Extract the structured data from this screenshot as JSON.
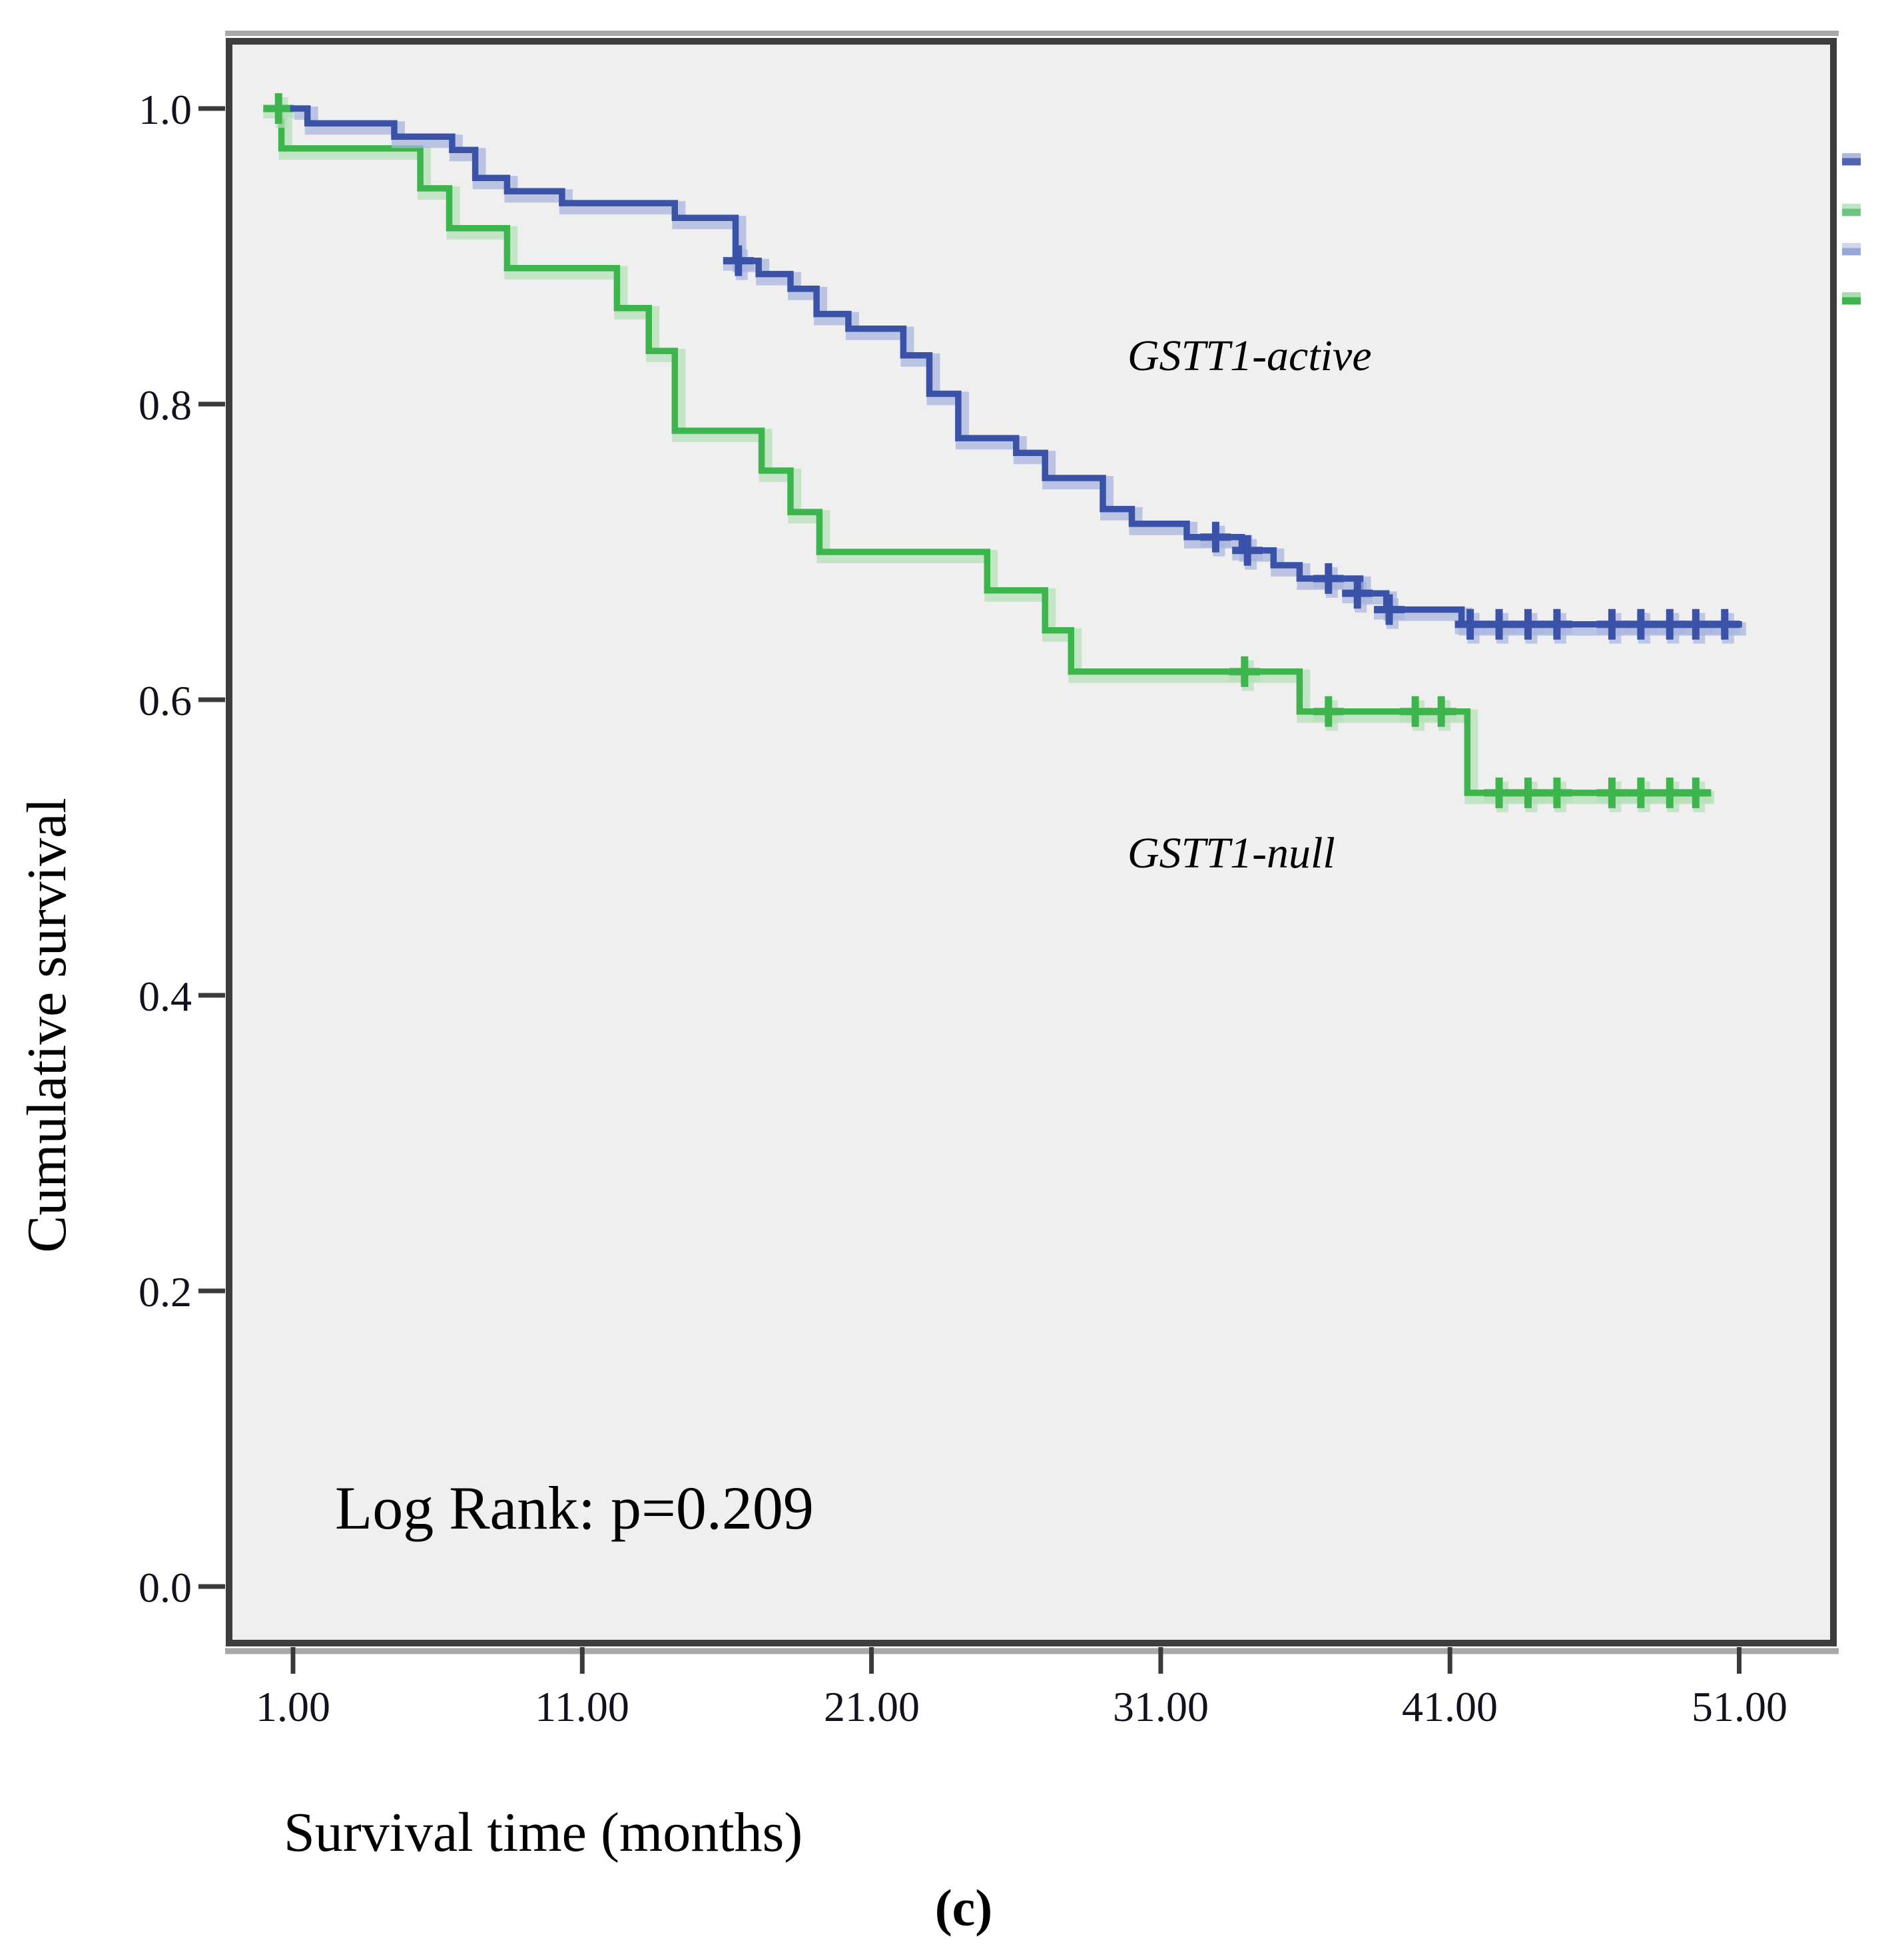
{
  "chart_data": {
    "type": "line",
    "subtype": "kaplan-meier-step",
    "title": "",
    "xlabel": "Survival time (months)",
    "ylabel": "Cumulative survival",
    "xlim": [
      -1.3,
      54.4
    ],
    "ylim": [
      -0.04,
      1.046
    ],
    "grid": false,
    "legend_position": "right-clipped",
    "x_ticks": [
      1,
      11,
      21,
      31,
      41,
      51
    ],
    "x_tick_labels": [
      "1.00",
      "11.00",
      "21.00",
      "31.00",
      "41.00",
      "51.00"
    ],
    "y_ticks": [
      0.0,
      0.2,
      0.4,
      0.6,
      0.8,
      1.0
    ],
    "y_tick_labels": [
      "0.0",
      "0.2",
      "0.4",
      "0.6",
      "0.8",
      "1.0"
    ],
    "annotations": {
      "log_rank": "Log Rank: p=0.209",
      "active_label": "GSTT1-active",
      "null_label": "GSTT1-null"
    },
    "caption": "(c)",
    "colors": {
      "plot_background": "#efefef",
      "frame_border": "#3d3d3d",
      "frame_shadow": "#a8a8a8",
      "active_line": "#3a53a8",
      "active_halo": "#aab6de",
      "null_line": "#3cb54d",
      "null_halo": "#b5e0b8",
      "tick": "#3a3a3a",
      "text": "#101018"
    },
    "series": [
      {
        "name": "GSTT1-active",
        "color": "#3a53a8",
        "end_t": 51.1,
        "points": [
          [
            0.9,
            1.0
          ],
          [
            1.5,
            0.99
          ],
          [
            4.5,
            0.981
          ],
          [
            6.5,
            0.972
          ],
          [
            7.3,
            0.953
          ],
          [
            8.4,
            0.944
          ],
          [
            10.3,
            0.936
          ],
          [
            14.2,
            0.926
          ],
          [
            16.3,
            0.897
          ],
          [
            17.1,
            0.888
          ],
          [
            18.2,
            0.878
          ],
          [
            19.1,
            0.861
          ],
          [
            20.2,
            0.851
          ],
          [
            22.1,
            0.833
          ],
          [
            23.0,
            0.807
          ],
          [
            24.0,
            0.777
          ],
          [
            26.0,
            0.767
          ],
          [
            27.0,
            0.75
          ],
          [
            29.0,
            0.729
          ],
          [
            30.0,
            0.719
          ],
          [
            31.9,
            0.71
          ],
          [
            33.8,
            0.701
          ],
          [
            34.9,
            0.691
          ],
          [
            35.8,
            0.682
          ],
          [
            37.9,
            0.672
          ],
          [
            38.8,
            0.661
          ],
          [
            41.4,
            0.651
          ]
        ],
        "censored": [
          [
            16.4,
            0.897
          ],
          [
            32.9,
            0.71
          ],
          [
            34.0,
            0.701
          ],
          [
            36.8,
            0.682
          ],
          [
            37.8,
            0.672
          ],
          [
            38.9,
            0.661
          ],
          [
            41.7,
            0.651
          ],
          [
            42.7,
            0.651
          ],
          [
            43.7,
            0.651
          ],
          [
            44.7,
            0.651
          ],
          [
            46.6,
            0.651
          ],
          [
            47.6,
            0.651
          ],
          [
            48.6,
            0.651
          ],
          [
            49.5,
            0.651
          ],
          [
            50.5,
            0.651
          ]
        ]
      },
      {
        "name": "GSTT1-null",
        "color": "#3cb54d",
        "end_t": 50.0,
        "points": [
          [
            0.5,
            1.0
          ],
          [
            0.6,
            0.973
          ],
          [
            5.4,
            0.946
          ],
          [
            6.4,
            0.919
          ],
          [
            8.4,
            0.892
          ],
          [
            12.2,
            0.865
          ],
          [
            13.3,
            0.836
          ],
          [
            14.2,
            0.782
          ],
          [
            17.2,
            0.755
          ],
          [
            18.2,
            0.727
          ],
          [
            19.2,
            0.7
          ],
          [
            25.0,
            0.674
          ],
          [
            27.0,
            0.647
          ],
          [
            27.9,
            0.619
          ],
          [
            35.8,
            0.592
          ],
          [
            41.6,
            0.537
          ]
        ],
        "censored": [
          [
            0.5,
            1.0
          ],
          [
            33.9,
            0.619
          ],
          [
            36.8,
            0.592
          ],
          [
            39.8,
            0.592
          ],
          [
            40.7,
            0.592
          ],
          [
            42.7,
            0.537
          ],
          [
            43.7,
            0.537
          ],
          [
            44.7,
            0.537
          ],
          [
            46.6,
            0.537
          ],
          [
            47.6,
            0.537
          ],
          [
            48.6,
            0.537
          ],
          [
            49.5,
            0.537
          ]
        ]
      }
    ],
    "legend_fragments": [
      {
        "color": "#4e64b0",
        "y": 243
      },
      {
        "color": "#6ec580",
        "y": 319
      },
      {
        "color": "#98a6d8",
        "y": 378
      },
      {
        "color": "#3eb54d",
        "y": 452
      }
    ]
  }
}
